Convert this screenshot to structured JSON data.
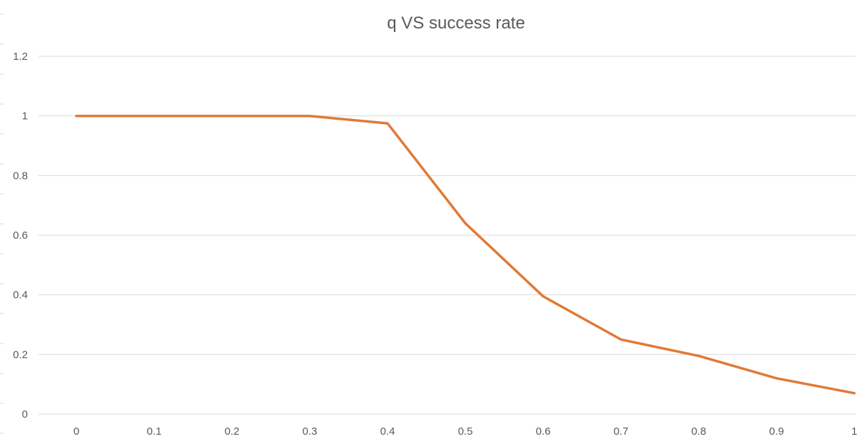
{
  "chart_data": {
    "type": "line",
    "title": "q VS success rate",
    "xlabel": "",
    "ylabel": "",
    "x": [
      0,
      0.1,
      0.2,
      0.3,
      0.4,
      0.5,
      0.6,
      0.7,
      0.8,
      0.9,
      1
    ],
    "x_tick_labels": [
      "0",
      "0.1",
      "0.2",
      "0.3",
      "0.4",
      "0.5",
      "0.6",
      "0.7",
      "0.8",
      "0.9",
      "1"
    ],
    "y_tick_values": [
      0,
      0.2,
      0.4,
      0.6,
      0.8,
      1,
      1.2
    ],
    "y_tick_labels": [
      "0",
      "0.2",
      "0.4",
      "0.6",
      "0.8",
      "1",
      "1.2"
    ],
    "ylim": [
      0,
      1.2
    ],
    "grid": true,
    "legend": "none",
    "series": [
      {
        "color": "#E07A36",
        "values": [
          1.0,
          1.0,
          1.0,
          1.0,
          0.975,
          0.64,
          0.395,
          0.25,
          0.195,
          0.12,
          0.07
        ]
      }
    ]
  }
}
